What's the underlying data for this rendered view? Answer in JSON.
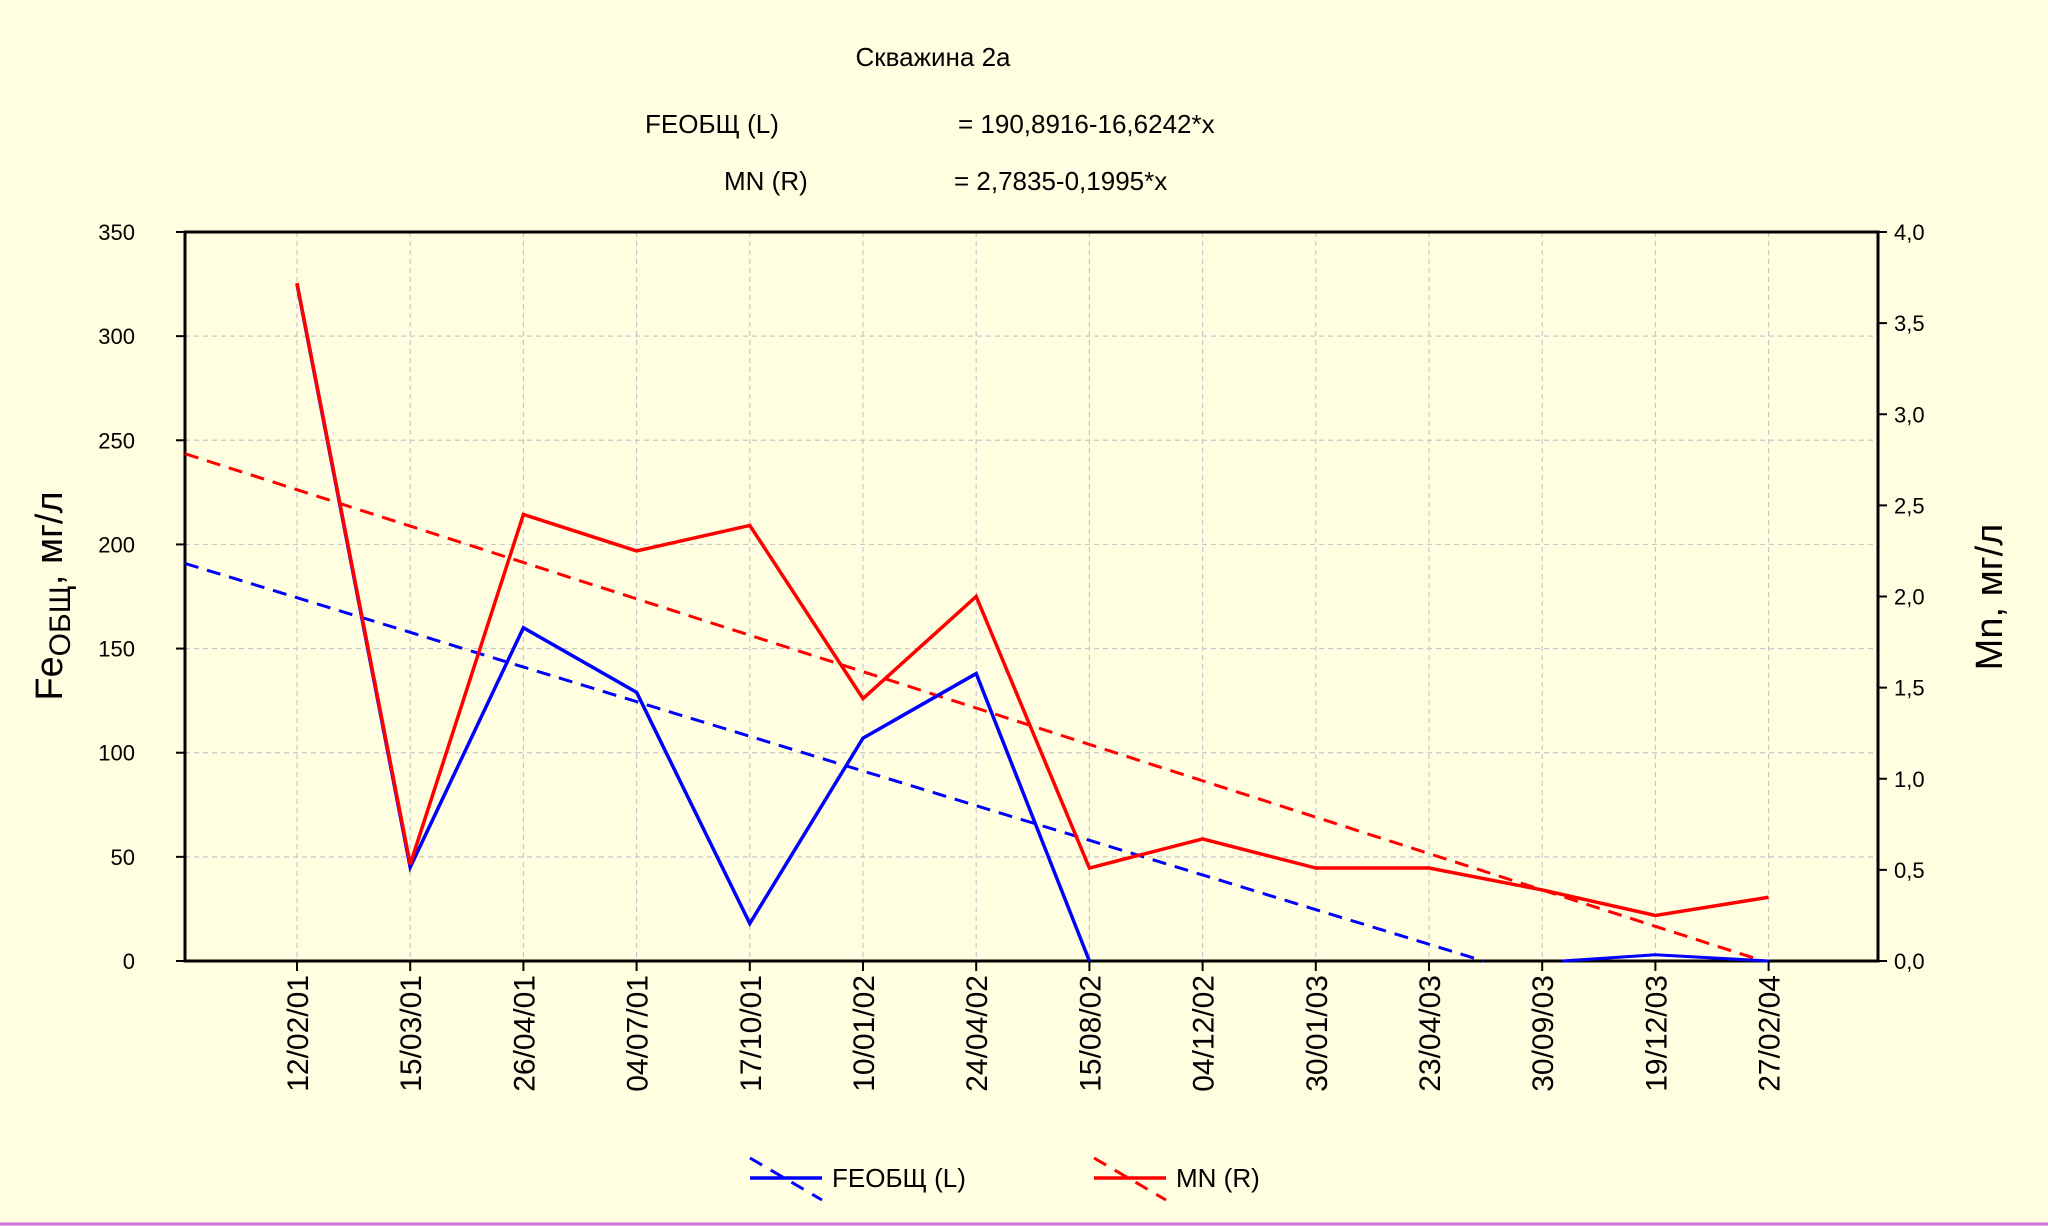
{
  "chart_data": {
    "type": "line",
    "title": "Скважина 2а",
    "equations": [
      {
        "label": "FEОБЩ (L)",
        "formula": "= 190,8916-16,6242*x"
      },
      {
        "label": "MN (R)",
        "formula": "= 2,7835-0,1995*x"
      }
    ],
    "categories": [
      "12/02/01",
      "15/03/01",
      "26/04/01",
      "04/07/01",
      "17/10/01",
      "10/01/02",
      "24/04/02",
      "15/08/02",
      "04/12/02",
      "30/01/03",
      "23/04/03",
      "30/09/03",
      "19/12/03",
      "27/02/04"
    ],
    "y_left": {
      "label_main": "Fe",
      "label_sub": "ОБЩ",
      "label_rest": ", мг/л",
      "range": [
        0,
        350
      ],
      "ticks": [
        "0",
        "50",
        "100",
        "150",
        "200",
        "250",
        "300",
        "350"
      ],
      "tick_values": [
        0,
        50,
        100,
        150,
        200,
        250,
        300,
        350
      ]
    },
    "y_right": {
      "label": "Mn, мг/л",
      "range": [
        0,
        4.0
      ],
      "ticks": [
        "0,0",
        "0,5",
        "1,0",
        "1,5",
        "2,0",
        "2,5",
        "3,0",
        "3,5",
        "4,0"
      ],
      "tick_values": [
        0,
        0.5,
        1.0,
        1.5,
        2.0,
        2.5,
        3.0,
        3.5,
        4.0
      ]
    },
    "series": [
      {
        "name": "FEОБЩ (L)",
        "axis": "left",
        "color": "#0000ff",
        "x": [
          1,
          2,
          3,
          4,
          5,
          6,
          7,
          8
        ],
        "values": [
          325,
          45,
          160,
          129,
          18,
          107,
          138,
          0
        ],
        "fit": {
          "intercept": 190.8916,
          "slope": -16.6242
        }
      },
      {
        "name": "MN (R)",
        "axis": "right",
        "color": "#ff0000",
        "x": [
          1,
          2,
          3,
          4,
          5,
          6,
          7,
          8,
          9,
          10,
          11,
          12,
          13,
          14
        ],
        "values": [
          3.72,
          0.53,
          2.45,
          2.25,
          2.39,
          1.44,
          2.0,
          0.51,
          0.67,
          0.51,
          0.51,
          0.39,
          0.25,
          0.35
        ],
        "fit": {
          "intercept": 2.7835,
          "slope": -0.1995
        }
      }
    ],
    "grid": true,
    "legend_position": "bottom-center"
  }
}
